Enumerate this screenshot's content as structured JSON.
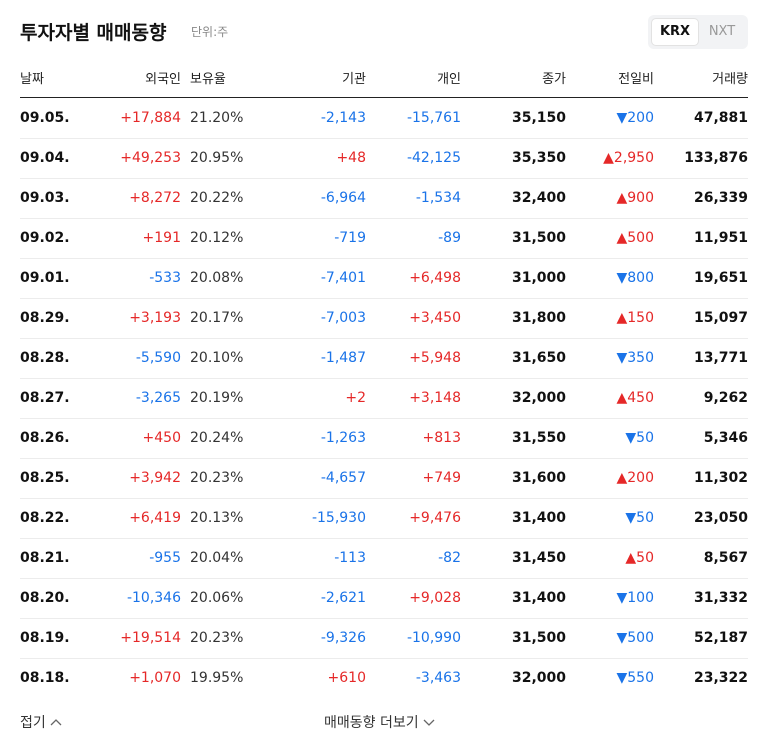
{
  "header": {
    "title": "투자자별 매매동향",
    "unit": "단위:주",
    "tabs": [
      "KRX",
      "NXT"
    ]
  },
  "table": {
    "columns": [
      "날짜",
      "외국인",
      "보유율",
      "기관",
      "개인",
      "종가",
      "전일비",
      "거래량"
    ],
    "rows": [
      [
        "09.05.",
        "+17,884",
        "21.20%",
        "-2,143",
        "-15,761",
        "35,150",
        "▼200",
        "47,881"
      ],
      [
        "09.04.",
        "+49,253",
        "20.95%",
        "+48",
        "-42,125",
        "35,350",
        "▲2,950",
        "133,876"
      ],
      [
        "09.03.",
        "+8,272",
        "20.22%",
        "-6,964",
        "-1,534",
        "32,400",
        "▲900",
        "26,339"
      ],
      [
        "09.02.",
        "+191",
        "20.12%",
        "-719",
        "-89",
        "31,500",
        "▲500",
        "11,951"
      ],
      [
        "09.01.",
        "-533",
        "20.08%",
        "-7,401",
        "+6,498",
        "31,000",
        "▼800",
        "19,651"
      ],
      [
        "08.29.",
        "+3,193",
        "20.17%",
        "-7,003",
        "+3,450",
        "31,800",
        "▲150",
        "15,097"
      ],
      [
        "08.28.",
        "-5,590",
        "20.10%",
        "-1,487",
        "+5,948",
        "31,650",
        "▼350",
        "13,771"
      ],
      [
        "08.27.",
        "-3,265",
        "20.19%",
        "+2",
        "+3,148",
        "32,000",
        "▲450",
        "9,262"
      ],
      [
        "08.26.",
        "+450",
        "20.24%",
        "-1,263",
        "+813",
        "31,550",
        "▼50",
        "5,346"
      ],
      [
        "08.25.",
        "+3,942",
        "20.23%",
        "-4,657",
        "+749",
        "31,600",
        "▲200",
        "11,302"
      ],
      [
        "08.22.",
        "+6,419",
        "20.13%",
        "-15,930",
        "+9,476",
        "31,400",
        "▼50",
        "23,050"
      ],
      [
        "08.21.",
        "-955",
        "20.04%",
        "-113",
        "-82",
        "31,450",
        "▲50",
        "8,567"
      ],
      [
        "08.20.",
        "-10,346",
        "20.06%",
        "-2,621",
        "+9,028",
        "31,400",
        "▼100",
        "31,332"
      ],
      [
        "08.19.",
        "+19,514",
        "20.23%",
        "-9,326",
        "-10,990",
        "31,500",
        "▼500",
        "52,187"
      ],
      [
        "08.18.",
        "+1,070",
        "19.95%",
        "+610",
        "-3,463",
        "32,000",
        "▼550",
        "23,322"
      ]
    ]
  },
  "footer": {
    "collapse": "접기",
    "more": "매매동향 더보기"
  }
}
